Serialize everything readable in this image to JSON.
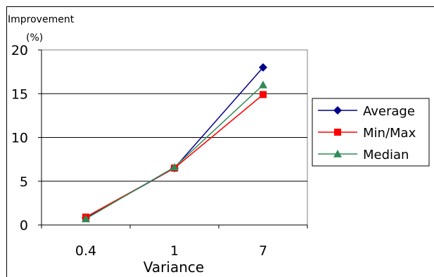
{
  "chart_data": {
    "type": "line",
    "ylabel_line1": "Improvement",
    "ylabel_line2": "(%)",
    "xlabel": "Variance",
    "categories": [
      "0.4",
      "1",
      "7"
    ],
    "ylim": [
      0,
      20
    ],
    "yticks": [
      "0",
      "5",
      "10",
      "15",
      "20"
    ],
    "grid": true,
    "legend_position": "right",
    "series": [
      {
        "name": "Average",
        "values": [
          0.8,
          6.5,
          18.0
        ],
        "color": "#00008b",
        "marker": "diamond"
      },
      {
        "name": "Min/Max",
        "values": [
          0.9,
          6.5,
          14.9
        ],
        "color": "#ff0000",
        "marker": "square"
      },
      {
        "name": "Median",
        "values": [
          0.7,
          6.6,
          16.0
        ],
        "color": "#2e8b57",
        "marker": "triangle"
      }
    ]
  }
}
